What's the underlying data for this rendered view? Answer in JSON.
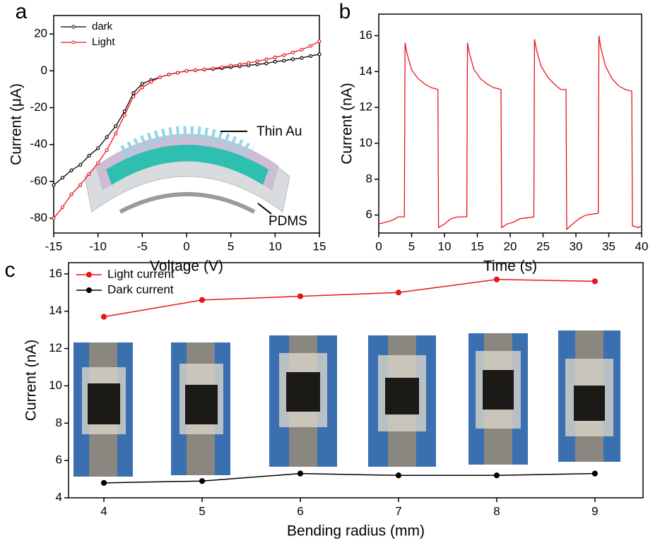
{
  "chart_data": [
    {
      "type": "line",
      "panel": "a",
      "xlabel": "Voltage (V)",
      "ylabel": "Current (μA)",
      "annotations": [
        "Thin Au",
        "PDMS"
      ],
      "x": [
        -15,
        -14,
        -13,
        -12,
        -11,
        -10,
        -9,
        -8,
        -7,
        -6,
        -5,
        -4,
        -3,
        -2,
        -1,
        0,
        1,
        2,
        3,
        4,
        5,
        6,
        7,
        8,
        9,
        10,
        11,
        12,
        13,
        14,
        15
      ],
      "series": [
        {
          "name": "dark",
          "color": "#000000",
          "values": [
            -62,
            -58,
            -54,
            -51,
            -46,
            -42,
            -36,
            -30,
            -22,
            -12,
            -7,
            -5,
            -3.5,
            -2,
            -1,
            0,
            0.3,
            0.7,
            1,
            1.5,
            2,
            2.5,
            3,
            3.5,
            4,
            5,
            5.5,
            6.3,
            7,
            8,
            9
          ]
        },
        {
          "name": "Light",
          "color": "#e8141c",
          "values": [
            -80,
            -74,
            -67,
            -62,
            -56,
            -50,
            -43,
            -34,
            -24,
            -14,
            -9,
            -6,
            -3.5,
            -2,
            -1,
            0,
            0.4,
            0.8,
            1.3,
            2,
            2.8,
            3.5,
            4.3,
            5.2,
            6.2,
            7.3,
            8.5,
            10,
            11.5,
            13.5,
            16
          ]
        }
      ],
      "markers": true,
      "legend": "upper left",
      "xlim": [
        -15,
        15
      ],
      "xticks": [
        -15,
        -10,
        -5,
        0,
        5,
        10,
        15
      ],
      "ylim": [
        -88,
        30
      ],
      "yticks": [
        -80,
        -60,
        -40,
        -20,
        0,
        20
      ]
    },
    {
      "type": "line",
      "panel": "b",
      "xlabel": "Time (s)",
      "ylabel": "Current (nA)",
      "x": [
        0,
        1,
        2,
        3,
        3.9,
        4.0,
        4.3,
        5,
        6,
        7,
        8,
        9.0,
        9.1,
        10,
        11,
        12,
        13.4,
        13.5,
        13.8,
        14.5,
        15.5,
        16.5,
        17.5,
        18.6,
        18.7,
        19.5,
        20.5,
        21.5,
        23.6,
        23.7,
        24,
        24.7,
        25.7,
        26.7,
        27.7,
        28.5,
        28.6,
        29.5,
        30.5,
        31.5,
        33.4,
        33.5,
        33.8,
        34.5,
        35.5,
        36.5,
        37.5,
        38.5,
        38.6,
        39.5,
        40
      ],
      "series": [
        {
          "color": "#e8141c",
          "values": [
            5.5,
            5.6,
            5.7,
            5.9,
            5.9,
            15.6,
            15.0,
            14.1,
            13.6,
            13.3,
            13.1,
            13.0,
            5.3,
            5.5,
            5.8,
            5.9,
            5.9,
            15.6,
            15.0,
            14.1,
            13.6,
            13.3,
            13.1,
            13.0,
            5.3,
            5.5,
            5.6,
            5.8,
            5.9,
            15.8,
            15.2,
            14.3,
            13.7,
            13.3,
            13.0,
            13.0,
            5.2,
            5.5,
            5.8,
            6.0,
            6.1,
            16.0,
            15.3,
            14.3,
            13.6,
            13.2,
            13.0,
            12.9,
            5.4,
            5.3,
            5.4
          ]
        }
      ],
      "markers": false,
      "xlim": [
        0,
        40
      ],
      "xticks": [
        0,
        5,
        10,
        15,
        20,
        25,
        30,
        35,
        40
      ],
      "ylim": [
        5,
        17.2
      ],
      "yticks": [
        6,
        8,
        10,
        12,
        14,
        16
      ]
    },
    {
      "type": "line",
      "panel": "c",
      "xlabel": "Bending radius (mm)",
      "ylabel": "Current (nA)",
      "x": [
        4,
        5,
        6,
        7,
        8,
        9
      ],
      "series": [
        {
          "name": "Light current",
          "color": "#e8141c",
          "values": [
            13.7,
            14.6,
            14.8,
            15.0,
            15.7,
            15.6
          ]
        },
        {
          "name": "Dark current",
          "color": "#000000",
          "values": [
            4.8,
            4.9,
            5.3,
            5.2,
            5.2,
            5.3
          ]
        }
      ],
      "markers": true,
      "legend": "upper left",
      "xlim": [
        3.64,
        9.49
      ],
      "xticks": [
        4,
        5,
        6,
        7,
        8,
        9
      ],
      "ylim": [
        4,
        16.6
      ],
      "yticks": [
        4,
        6,
        8,
        10,
        12,
        14,
        16
      ]
    }
  ]
}
